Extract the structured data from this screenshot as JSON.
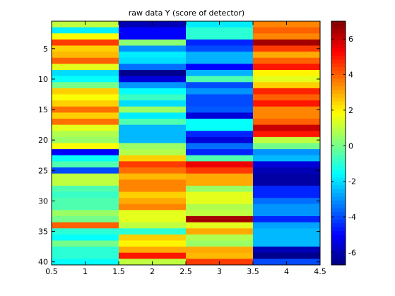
{
  "chart_data": {
    "type": "heatmap",
    "title": "raw data Y (score of detector)",
    "xlabel": "",
    "ylabel": "",
    "xlim": [
      0.5,
      4.5
    ],
    "ylim": [
      0.5,
      40.5
    ],
    "y_reversed": true,
    "grid": false,
    "colormap": "jet",
    "clim": [
      -6.7,
      7.0
    ],
    "x_ticks": [
      0.5,
      1,
      1.5,
      2,
      2.5,
      3,
      3.5,
      4,
      4.5
    ],
    "x_tick_labels": [
      "0.5",
      "1",
      "1.5",
      "2",
      "2.5",
      "3",
      "3.5",
      "4",
      "4.5"
    ],
    "y_ticks": [
      5,
      10,
      15,
      20,
      25,
      30,
      35,
      40
    ],
    "y_tick_labels": [
      "5",
      "10",
      "15",
      "20",
      "25",
      "30",
      "35",
      "40"
    ],
    "colorbar_ticks": [
      6,
      4,
      2,
      0,
      -2,
      -4,
      -6
    ],
    "colorbar_tick_labels": [
      "6",
      "4",
      "2",
      "0",
      "-2",
      "-4",
      "-6"
    ],
    "columns": [
      1,
      2,
      3,
      4
    ],
    "rows": [
      1,
      2,
      3,
      4,
      5,
      6,
      7,
      8,
      9,
      10,
      11,
      12,
      13,
      14,
      15,
      16,
      17,
      18,
      19,
      20,
      21,
      22,
      23,
      24,
      25,
      26,
      27,
      28,
      29,
      30,
      31,
      32,
      33,
      34,
      35,
      36,
      37,
      38,
      39,
      40
    ],
    "values": [
      [
        1.0,
        -6.0,
        -1.8,
        3.5
      ],
      [
        -1.8,
        -5.0,
        -1.0,
        4.0
      ],
      [
        1.8,
        -5.0,
        -1.0,
        3.5
      ],
      [
        4.5,
        0.3,
        -4.5,
        6.5
      ],
      [
        2.5,
        -3.0,
        -4.0,
        4.5
      ],
      [
        2.8,
        -1.8,
        -2.6,
        3.0
      ],
      [
        4.0,
        -2.0,
        -2.6,
        4.0
      ],
      [
        1.5,
        -3.5,
        -5.0,
        5.0
      ],
      [
        -2.0,
        -6.5,
        -2.6,
        2.0
      ],
      [
        -1.5,
        -5.5,
        -0.5,
        1.5
      ],
      [
        0.0,
        -3.0,
        -4.0,
        2.5
      ],
      [
        2.5,
        -1.5,
        -3.0,
        4.8
      ],
      [
        1.8,
        -0.8,
        -4.0,
        4.0
      ],
      [
        2.5,
        -2.0,
        -4.0,
        5.0
      ],
      [
        3.8,
        0.5,
        -3.8,
        3.5
      ],
      [
        2.5,
        -1.8,
        -5.5,
        3.5
      ],
      [
        3.8,
        -0.5,
        -1.5,
        4.0
      ],
      [
        1.5,
        -2.5,
        -1.5,
        6.0
      ],
      [
        0.8,
        -2.5,
        -4.5,
        5.0
      ],
      [
        0.5,
        -2.5,
        -5.5,
        1.0
      ],
      [
        1.8,
        0.5,
        -3.5,
        0.0
      ],
      [
        -5.0,
        0.8,
        -4.5,
        -3.0
      ],
      [
        -1.5,
        2.5,
        -0.5,
        -2.5
      ],
      [
        -0.5,
        4.5,
        5.5,
        -5.5
      ],
      [
        -4.0,
        3.8,
        4.5,
        -6.0
      ],
      [
        1.0,
        2.8,
        3.0,
        -6.2
      ],
      [
        1.0,
        3.5,
        3.0,
        -6.2
      ],
      [
        -0.5,
        3.5,
        0.5,
        -4.5
      ],
      [
        -0.8,
        2.5,
        1.5,
        -4.5
      ],
      [
        -0.5,
        3.0,
        1.5,
        -3.5
      ],
      [
        -0.5,
        3.5,
        0.8,
        -3.0
      ],
      [
        0.5,
        1.5,
        1.0,
        -3.0
      ],
      [
        0.0,
        1.5,
        6.5,
        -4.5
      ],
      [
        4.0,
        1.0,
        1.5,
        -2.8
      ],
      [
        -1.0,
        -1.0,
        3.0,
        -2.5
      ],
      [
        -1.5,
        2.5,
        0.8,
        -2.5
      ],
      [
        0.0,
        2.0,
        0.5,
        -2.5
      ],
      [
        -1.0,
        3.0,
        3.0,
        -6.0
      ],
      [
        -1.0,
        5.0,
        2.8,
        -6.5
      ],
      [
        -1.5,
        1.0,
        4.5,
        -4.0
      ]
    ]
  }
}
